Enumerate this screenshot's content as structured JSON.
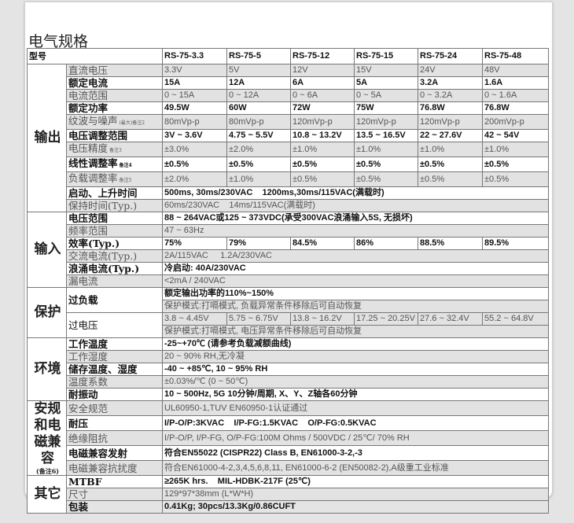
{
  "title": "电气规格",
  "header": {
    "label": "型号",
    "models": [
      "RS-75-3.3",
      "RS-75-5",
      "RS-75-12",
      "RS-75-15",
      "RS-75-24",
      "RS-75-48"
    ]
  },
  "sections": [
    {
      "name": "输出",
      "rows": [
        {
          "label": "直流电压",
          "style": "light",
          "values": [
            "3.3V",
            "5V",
            "12V",
            "15V",
            "24V",
            "48V"
          ]
        },
        {
          "label": "额定电流",
          "style": "bold",
          "values": [
            "15A",
            "12A",
            "6A",
            "5A",
            "3.2A",
            "1.6A"
          ]
        },
        {
          "label": "电流范围",
          "style": "light",
          "values": [
            "0 ~ 15A",
            "0 ~ 12A",
            "0 ~ 6A",
            "0 ~ 5A",
            "0 ~ 3.2A",
            "0 ~ 1.6A"
          ]
        },
        {
          "label": "额定功率",
          "style": "bold",
          "values": [
            "49.5W",
            "60W",
            "72W",
            "75W",
            "76.8W",
            "76.8W"
          ]
        },
        {
          "label": "纹波与噪声",
          "note": "(最大)备注2",
          "style": "light",
          "values": [
            "80mVp-p",
            "80mVp-p",
            "120mVp-p",
            "120mVp-p",
            "120mVp-p",
            "200mVp-p"
          ]
        },
        {
          "label": "电压调整范围",
          "style": "bold",
          "values": [
            "3V ~ 3.6V",
            "4.75 ~ 5.5V",
            "10.8 ~ 13.2V",
            "13.5 ~ 16.5V",
            "22 ~ 27.6V",
            "42 ~ 54V"
          ]
        },
        {
          "label": "电压精度",
          "note": "备注3",
          "style": "light",
          "values": [
            "±3.0%",
            "±2.0%",
            "±1.0%",
            "±1.0%",
            "±1.0%",
            "±1.0%"
          ]
        },
        {
          "label": "线性调整率",
          "note": "备注4",
          "style": "bold",
          "values": [
            "±0.5%",
            "±0.5%",
            "±0.5%",
            "±0.5%",
            "±0.5%",
            "±0.5%"
          ]
        },
        {
          "label": "负载调整率",
          "note": "备注5",
          "style": "light",
          "values": [
            "±2.0%",
            "±1.0%",
            "±0.5%",
            "±0.5%",
            "±0.5%",
            "±0.5%"
          ]
        },
        {
          "label": "启动、上升时间",
          "style": "bold",
          "text": "500ms, 30ms/230VAC    1200ms,30ms/115VAC(满载时)"
        },
        {
          "label": "保持时间(Typ.)",
          "style": "light",
          "text": "60ms/230VAC    14ms/115VAC(满载时)"
        }
      ]
    },
    {
      "name": "输入",
      "rows": [
        {
          "label": "电压范围",
          "style": "bold",
          "text": "88 ~ 264VAC或125 ~ 373VDC(承受300VAC浪涌输入5S, 无损坏)"
        },
        {
          "label": "频率范围",
          "style": "light",
          "text": "47 ~ 63Hz"
        },
        {
          "label": "效率(Typ.)",
          "style": "bold",
          "values": [
            "75%",
            "79%",
            "84.5%",
            "86%",
            "88.5%",
            "89.5%"
          ]
        },
        {
          "label": "交流电流(Typ.)",
          "style": "light",
          "text": "2A/115VAC     1.2A/230VAC"
        },
        {
          "label": "浪涌电流(Typ.)",
          "style": "bold",
          "text": "冷启动: 40A/230VAC"
        },
        {
          "label": "漏电流",
          "style": "light",
          "text": "<2mA / 240VAC"
        }
      ]
    },
    {
      "name": "保护",
      "rows": [
        {
          "label": "过负载",
          "label_rows": 2,
          "style": "bold",
          "text": "额定输出功率的110%~150%"
        },
        {
          "style": "light",
          "text": "保护模式:打嗝模式, 负载异常条件移除后可自动恢复"
        },
        {
          "label": "过电压",
          "label_rows": 2,
          "style": "light",
          "values": [
            "3.8 ~ 4.45V",
            "5.75 ~ 6.75V",
            "13.8 ~ 16.2V",
            "17.25 ~ 20.25V",
            "27.6 ~ 32.4V",
            "55.2 ~ 64.8V"
          ]
        },
        {
          "style": "light",
          "text": "保护模式:打嗝模式, 电压异常条件移除后可自动恢复"
        }
      ]
    },
    {
      "name": "环境",
      "rows": [
        {
          "label": "工作温度",
          "style": "bold",
          "text": "-25~+70℃ (请参考负载减额曲线)"
        },
        {
          "label": "工作湿度",
          "style": "light",
          "text": "20 ~ 90% RH,无冷凝"
        },
        {
          "label": "储存温度、湿度",
          "style": "bold",
          "text": "-40 ~ +85℃, 10 ~ 95% RH"
        },
        {
          "label": "温度系数",
          "style": "light",
          "text": "±0.03%/℃ (0 ~ 50℃)"
        },
        {
          "label": "耐振动",
          "style": "bold",
          "text": "10 ~ 500Hz, 5G 10分钟/周期, X、Y、Z轴各60分钟"
        }
      ]
    },
    {
      "name": "安规和电磁兼容",
      "note": "(备注6)",
      "rows": [
        {
          "label": "安全规范",
          "style": "light",
          "text": "UL60950-1,TUV EN60950-1认证通过"
        },
        {
          "label": "耐压",
          "style": "bold",
          "text": "I/P-O/P:3KVAC    I/P-FG:1.5KVAC    O/P-FG:0.5KVAC"
        },
        {
          "label": "绝缘阻抗",
          "style": "light",
          "text": "I/P-O/P, I/P-FG, O/P-FG:100M Ohms / 500VDC / 25℃/ 70% RH"
        },
        {
          "label": "电磁兼容发射",
          "style": "bold",
          "text": "符合EN55022 (CISPR22) Class B, EN61000-3-2,-3"
        },
        {
          "label": "电磁兼容抗扰度",
          "style": "light",
          "text": "符合EN61000-4-2,3,4,5,6,8,11, EN61000-6-2 (EN50082-2),A级重工业标准"
        }
      ]
    },
    {
      "name": "其它",
      "rows": [
        {
          "label": "MTBF",
          "style": "bold",
          "text": "≥265K hrs.    MIL-HDBK-217F (25℃)"
        },
        {
          "label": "尺寸",
          "style": "light",
          "text": "129*97*38mm (L*W*H)"
        },
        {
          "label": "包装",
          "style": "bold",
          "text": "0.41Kg; 30pcs/13.3Kg/0.86CUFT"
        }
      ]
    }
  ]
}
